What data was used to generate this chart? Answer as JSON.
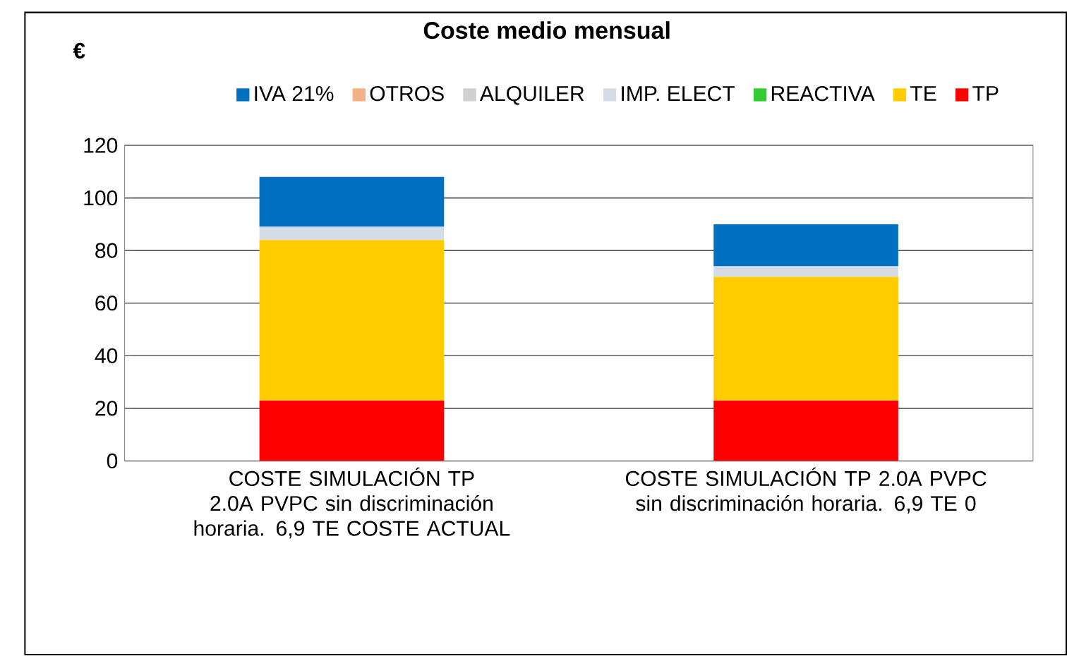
{
  "chart_data": {
    "type": "bar",
    "stacked": true,
    "title": "Coste medio mensual",
    "ylabel": "€",
    "categories": [
      "COSTE SIMULACIÓN TP 2.0A PVPC sin discriminación horaria. 6,9 TE COSTE ACTUAL",
      "COSTE SIMULACIÓN TP 2.0A PVPC sin discriminación horaria. 6,9 TE 0"
    ],
    "series": [
      {
        "name": "TP",
        "color": "#ff0000",
        "values": [
          23,
          23
        ]
      },
      {
        "name": "TE",
        "color": "#ffcc00",
        "values": [
          61,
          47
        ]
      },
      {
        "name": "REACTIVA",
        "color": "#33cc33",
        "values": [
          0,
          0
        ]
      },
      {
        "name": "IMP. ELECT",
        "color": "#d6dce5",
        "values": [
          5,
          4
        ]
      },
      {
        "name": "ALQUILER",
        "color": "#d0d0d0",
        "values": [
          0,
          0
        ]
      },
      {
        "name": "OTROS",
        "color": "#f4b183",
        "values": [
          0,
          0
        ]
      },
      {
        "name": "IVA 21%",
        "color": "#0070c0",
        "values": [
          19,
          16
        ]
      }
    ],
    "ylim": [
      0,
      120
    ],
    "yticks": [
      0,
      20,
      40,
      60,
      80,
      100,
      120
    ],
    "grid": "y",
    "legend": "top"
  }
}
